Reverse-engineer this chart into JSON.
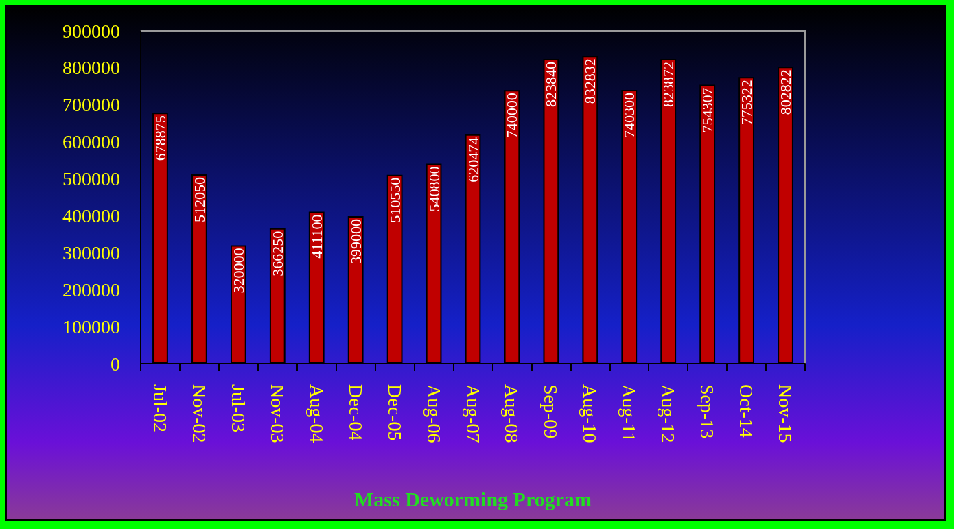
{
  "chart_data": {
    "type": "bar",
    "xlabel": "Mass Deworming Program",
    "categories": [
      "Jul-02",
      "Nov-02",
      "Jul-03",
      "Nov-03",
      "Aug-04",
      "Dec-04",
      "Dec-05",
      "Aug-06",
      "Aug-07",
      "Aug-08",
      "Sep-09",
      "Aug-10",
      "Aug-11",
      "Aug-12",
      "Sep-13",
      "Oct-14",
      "Nov-15"
    ],
    "values": [
      678875,
      512050,
      320000,
      366250,
      411100,
      399000,
      510550,
      540800,
      620474,
      740000,
      823840,
      832832,
      740300,
      823872,
      754307,
      775322,
      802822
    ],
    "color": "#c00000",
    "ylim": [
      0,
      900000
    ],
    "yticks": [
      0,
      100000,
      200000,
      300000,
      400000,
      500000,
      600000,
      700000,
      800000,
      900000
    ],
    "data_labels": true
  }
}
